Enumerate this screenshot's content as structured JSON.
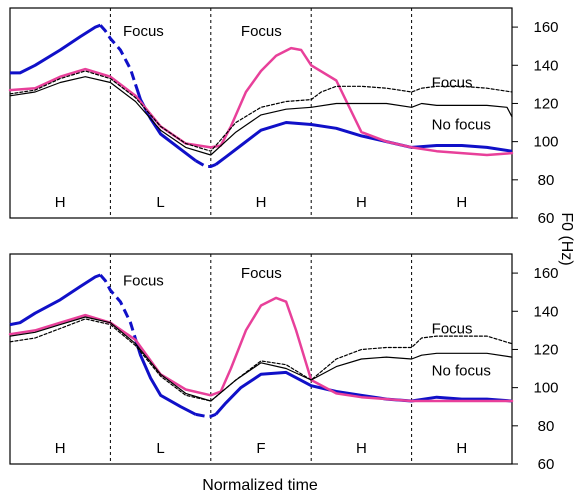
{
  "chart_data": {
    "type": "line",
    "ylabel": "F0 (Hz)",
    "xlabel": "Normalized time",
    "xlim": [
      0,
      100
    ],
    "ylim": [
      60,
      170
    ],
    "yticks": [
      60,
      80,
      100,
      120,
      140,
      160
    ],
    "panels": [
      {
        "boundaries": [
          20,
          40,
          60,
          80
        ],
        "segments": [
          "H",
          "L",
          "H",
          "H",
          "H"
        ],
        "annotations": [
          {
            "text": "Focus",
            "x": 22.5,
            "y": 158
          },
          {
            "text": "Focus",
            "x": 46,
            "y": 158
          },
          {
            "text": "Focus",
            "x": 84,
            "y": 131
          },
          {
            "text": "No focus",
            "x": 84,
            "y": 109
          }
        ],
        "series": [
          {
            "color": "#1010c8",
            "width": 3,
            "style": "segmented",
            "dashed_ranges": [
              [
                18,
                25
              ],
              [
                37,
                41
              ]
            ],
            "x": [
              0,
              2,
              5,
              10,
              14,
              17,
              18,
              19,
              20,
              22,
              24,
              26,
              28,
              30,
              34,
              37,
              39,
              40,
              41,
              43,
              46,
              50,
              55,
              60,
              65,
              70,
              75,
              80,
              85,
              90,
              95,
              100
            ],
            "y": [
              136,
              136,
              140,
              148,
              155,
              160,
              161,
              158,
              154,
              148,
              138,
              122,
              112,
              104,
              96,
              90,
              87,
              87,
              88,
              92,
              98,
              106,
              110,
              109,
              107,
              103,
              100,
              97,
              98,
              98,
              97,
              95
            ]
          },
          {
            "color": "#e8409a",
            "width": 2.5,
            "style": "solid",
            "x": [
              0,
              5,
              10,
              15,
              20,
              25,
              30,
              35,
              40,
              42,
              44,
              47,
              50,
              53,
              56,
              58,
              60,
              65,
              70,
              75,
              80,
              85,
              90,
              95,
              100
            ],
            "y": [
              127,
              128,
              134,
              138,
              134,
              124,
              108,
              99,
              97,
              98,
              108,
              126,
              137,
              145,
              149,
              148,
              140,
              132,
              105,
              100,
              97,
              95,
              94,
              93,
              94
            ]
          },
          {
            "color": "#000000",
            "width": 1.2,
            "style": "dashed",
            "x": [
              0,
              5,
              10,
              15,
              20,
              25,
              30,
              35,
              40,
              45,
              50,
              55,
              60,
              62,
              65,
              70,
              75,
              80,
              82,
              85,
              90,
              95,
              100
            ],
            "y": [
              125,
              127,
              133,
              137,
              133,
              123,
              108,
              99,
              95,
              110,
              118,
              121,
              122,
              126,
              129,
              129,
              128,
              126,
              128,
              129,
              129,
              128,
              126
            ]
          },
          {
            "color": "#000000",
            "width": 1.2,
            "style": "solid",
            "x": [
              0,
              5,
              10,
              15,
              20,
              25,
              30,
              35,
              40,
              45,
              50,
              55,
              60,
              65,
              70,
              75,
              80,
              82,
              85,
              90,
              95,
              99,
              100
            ],
            "y": [
              124,
              126,
              131,
              134,
              131,
              121,
              106,
              97,
              93,
              105,
              114,
              117,
              118,
              120,
              120,
              120,
              118,
              120,
              119,
              119,
              119,
              118,
              113
            ]
          }
        ]
      },
      {
        "boundaries": [
          20,
          40,
          60,
          80
        ],
        "segments": [
          "H",
          "L",
          "F",
          "H",
          "H"
        ],
        "annotations": [
          {
            "text": "Focus",
            "x": 22.5,
            "y": 156
          },
          {
            "text": "Focus",
            "x": 46,
            "y": 160
          },
          {
            "text": "Focus",
            "x": 84,
            "y": 131
          },
          {
            "text": "No focus",
            "x": 84,
            "y": 109
          }
        ],
        "series": [
          {
            "color": "#1010c8",
            "width": 3,
            "style": "segmented",
            "dashed_ranges": [
              [
                18,
                25
              ],
              [
                37,
                41
              ]
            ],
            "x": [
              0,
              2,
              5,
              10,
              14,
              17,
              18,
              19,
              20,
              22,
              24,
              26,
              28,
              30,
              34,
              37,
              39,
              40,
              41,
              43,
              46,
              50,
              55,
              60,
              65,
              70,
              75,
              80,
              85,
              90,
              95,
              100
            ],
            "y": [
              133,
              134,
              139,
              146,
              153,
              158,
              159,
              156,
              151,
              145,
              134,
              117,
              105,
              96,
              90,
              86,
              85,
              85,
              86,
              92,
              100,
              107,
              108,
              101,
              98,
              96,
              94,
              93,
              95,
              94,
              94,
              93
            ]
          },
          {
            "color": "#e8409a",
            "width": 2.5,
            "style": "solid",
            "x": [
              0,
              5,
              10,
              15,
              20,
              25,
              30,
              35,
              40,
              42,
              44,
              47,
              50,
              53,
              55,
              57,
              60,
              65,
              70,
              75,
              80,
              85,
              90,
              95,
              100
            ],
            "y": [
              128,
              130,
              134,
              138,
              134,
              125,
              107,
              99,
              96,
              98,
              110,
              130,
              143,
              147,
              145,
              130,
              104,
              97,
              95,
              94,
              93,
              93,
              93,
              93,
              93
            ]
          },
          {
            "color": "#000000",
            "width": 1.2,
            "style": "dashed",
            "x": [
              0,
              5,
              10,
              15,
              20,
              25,
              30,
              35,
              40,
              45,
              50,
              55,
              60,
              65,
              70,
              75,
              80,
              82,
              85,
              90,
              95,
              100
            ],
            "y": [
              124,
              126,
              131,
              136,
              133,
              122,
              106,
              96,
              93,
              104,
              114,
              112,
              104,
              115,
              120,
              121,
              121,
              126,
              127,
              127,
              127,
              123
            ]
          },
          {
            "color": "#000000",
            "width": 1.2,
            "style": "solid",
            "x": [
              0,
              5,
              10,
              15,
              20,
              25,
              30,
              35,
              40,
              45,
              50,
              55,
              60,
              65,
              70,
              75,
              80,
              82,
              85,
              90,
              95,
              100
            ],
            "y": [
              127,
              129,
              133,
              137,
              134,
              123,
              107,
              97,
              93,
              104,
              113,
              110,
              104,
              111,
              115,
              116,
              115,
              117,
              118,
              118,
              118,
              116
            ]
          }
        ]
      }
    ]
  }
}
